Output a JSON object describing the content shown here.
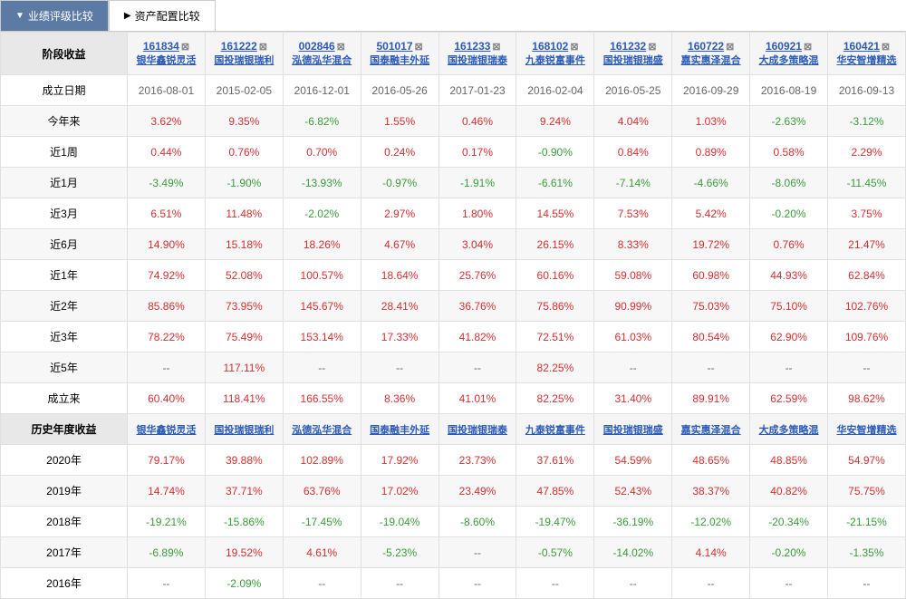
{
  "tabs": {
    "active": "业绩评级比较",
    "inactive": "资产配置比较"
  },
  "section1": "阶段收益",
  "section2": "历史年度收益",
  "funds": [
    {
      "code": "161834",
      "name": "银华鑫锐灵活"
    },
    {
      "code": "161222",
      "name": "国投瑞银瑞利"
    },
    {
      "code": "002846",
      "name": "泓德泓华混合"
    },
    {
      "code": "501017",
      "name": "国泰融丰外延"
    },
    {
      "code": "161233",
      "name": "国投瑞银瑞泰"
    },
    {
      "code": "168102",
      "name": "九泰锐富事件"
    },
    {
      "code": "161232",
      "name": "国投瑞银瑞盛"
    },
    {
      "code": "160722",
      "name": "嘉实惠泽混合"
    },
    {
      "code": "160921",
      "name": "大成多策略混"
    },
    {
      "code": "160421",
      "name": "华安智增精选"
    }
  ],
  "rows1": [
    {
      "label": "成立日期",
      "vals": [
        "2016-08-01",
        "2015-02-05",
        "2016-12-01",
        "2016-05-26",
        "2017-01-23",
        "2016-02-04",
        "2016-05-25",
        "2016-09-29",
        "2016-08-19",
        "2016-09-13"
      ],
      "type": "date"
    },
    {
      "label": "今年来",
      "vals": [
        "3.62%",
        "9.35%",
        "-6.82%",
        "1.55%",
        "0.46%",
        "9.24%",
        "4.04%",
        "1.03%",
        "-2.63%",
        "-3.12%"
      ]
    },
    {
      "label": "近1周",
      "vals": [
        "0.44%",
        "0.76%",
        "0.70%",
        "0.24%",
        "0.17%",
        "-0.90%",
        "0.84%",
        "0.89%",
        "0.58%",
        "2.29%"
      ]
    },
    {
      "label": "近1月",
      "vals": [
        "-3.49%",
        "-1.90%",
        "-13.93%",
        "-0.97%",
        "-1.91%",
        "-6.61%",
        "-7.14%",
        "-4.66%",
        "-8.06%",
        "-11.45%"
      ]
    },
    {
      "label": "近3月",
      "vals": [
        "6.51%",
        "11.48%",
        "-2.02%",
        "2.97%",
        "1.80%",
        "14.55%",
        "7.53%",
        "5.42%",
        "-0.20%",
        "3.75%"
      ]
    },
    {
      "label": "近6月",
      "vals": [
        "14.90%",
        "15.18%",
        "18.26%",
        "4.67%",
        "3.04%",
        "26.15%",
        "8.33%",
        "19.72%",
        "0.76%",
        "21.47%"
      ]
    },
    {
      "label": "近1年",
      "vals": [
        "74.92%",
        "52.08%",
        "100.57%",
        "18.64%",
        "25.76%",
        "60.16%",
        "59.08%",
        "60.98%",
        "44.93%",
        "62.84%"
      ]
    },
    {
      "label": "近2年",
      "vals": [
        "85.86%",
        "73.95%",
        "145.67%",
        "28.41%",
        "36.76%",
        "75.86%",
        "90.99%",
        "75.03%",
        "75.10%",
        "102.76%"
      ]
    },
    {
      "label": "近3年",
      "vals": [
        "78.22%",
        "75.49%",
        "153.14%",
        "17.33%",
        "41.82%",
        "72.51%",
        "61.03%",
        "80.54%",
        "62.90%",
        "109.76%"
      ]
    },
    {
      "label": "近5年",
      "vals": [
        "--",
        "117.11%",
        "--",
        "--",
        "--",
        "82.25%",
        "--",
        "--",
        "--",
        "--"
      ]
    },
    {
      "label": "成立来",
      "vals": [
        "60.40%",
        "118.41%",
        "166.55%",
        "8.36%",
        "41.01%",
        "82.25%",
        "31.40%",
        "89.91%",
        "62.59%",
        "98.62%"
      ]
    }
  ],
  "rows2": [
    {
      "label": "2020年",
      "vals": [
        "79.17%",
        "39.88%",
        "102.89%",
        "17.92%",
        "23.73%",
        "37.61%",
        "54.59%",
        "48.65%",
        "48.85%",
        "54.97%"
      ]
    },
    {
      "label": "2019年",
      "vals": [
        "14.74%",
        "37.71%",
        "63.76%",
        "17.02%",
        "23.49%",
        "47.85%",
        "52.43%",
        "38.37%",
        "40.82%",
        "75.75%"
      ]
    },
    {
      "label": "2018年",
      "vals": [
        "-19.21%",
        "-15.86%",
        "-17.45%",
        "-19.04%",
        "-8.60%",
        "-19.47%",
        "-36.19%",
        "-12.02%",
        "-20.34%",
        "-21.15%"
      ]
    },
    {
      "label": "2017年",
      "vals": [
        "-6.89%",
        "19.52%",
        "4.61%",
        "-5.23%",
        "--",
        "-0.57%",
        "-14.02%",
        "4.14%",
        "-0.20%",
        "-1.35%"
      ]
    },
    {
      "label": "2016年",
      "vals": [
        "--",
        "-2.09%",
        "--",
        "--",
        "--",
        "--",
        "--",
        "--",
        "--",
        "--"
      ]
    }
  ]
}
